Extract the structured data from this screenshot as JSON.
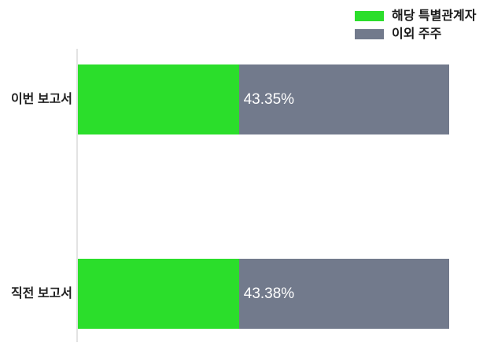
{
  "chart_data": {
    "type": "bar",
    "orientation": "horizontal",
    "stacked": true,
    "title": "",
    "xlabel": "",
    "ylabel": "",
    "categories": [
      "이번 보고서",
      "직전 보고서"
    ],
    "series": [
      {
        "name": "해당 특별관계자",
        "color": "#2BDE2B",
        "values": [
          43.35,
          43.38
        ]
      },
      {
        "name": "이외 주주",
        "color": "#727A8C",
        "values": [
          56.65,
          56.62
        ]
      }
    ],
    "value_labels": [
      "43.35%",
      "43.38%"
    ],
    "xlim": [
      0,
      100
    ],
    "grid": false,
    "legend_position": "top-right"
  },
  "colors": {
    "background": "#FFFFFF",
    "axis_line": "#E3E3E3",
    "category_text": "#222222",
    "legend_text": "#1A1A1A",
    "value_text": "#FFFFFF"
  }
}
